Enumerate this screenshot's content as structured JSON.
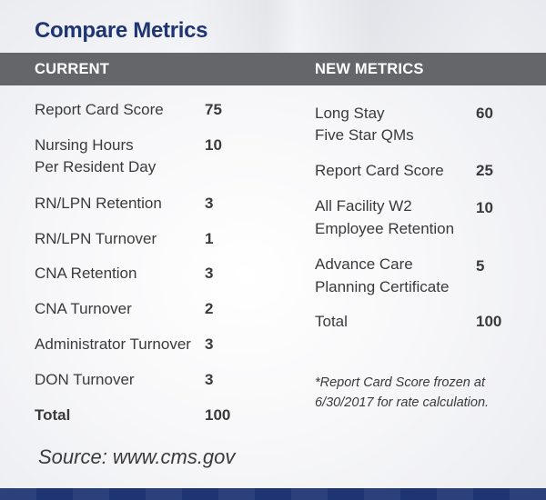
{
  "title": "Compare Metrics",
  "headers": {
    "current": "CURRENT",
    "new": "NEW METRICS"
  },
  "current": [
    {
      "label": [
        "Report Card Score"
      ],
      "value": "75"
    },
    {
      "label": [
        "Nursing Hours",
        "Per Resident Day"
      ],
      "value": "10"
    },
    {
      "label": [
        "RN/LPN Retention"
      ],
      "value": "3"
    },
    {
      "label": [
        "RN/LPN Turnover"
      ],
      "value": "1"
    },
    {
      "label": [
        "CNA Retention"
      ],
      "value": "3"
    },
    {
      "label": [
        "CNA Turnover"
      ],
      "value": "2"
    },
    {
      "label": [
        "Administrator Turnover"
      ],
      "value": "3"
    },
    {
      "label": [
        "DON Turnover"
      ],
      "value": "3"
    },
    {
      "label": [
        "Total"
      ],
      "value": "100"
    }
  ],
  "new_metrics": [
    {
      "label": [
        "Long Stay",
        "Five Star QMs"
      ],
      "value": "60"
    },
    {
      "label": [
        "Report Card Score"
      ],
      "value": "25"
    },
    {
      "label": [
        "All Facility W2",
        "Employee Retention"
      ],
      "value": "10"
    },
    {
      "label": [
        "Advance Care",
        "Planning Certificate"
      ],
      "value": "5"
    },
    {
      "label": [
        "Total"
      ],
      "value": "100"
    }
  ],
  "note": [
    "*Report Card Score frozen at",
    "6/30/2017 for rate calculation."
  ],
  "source": "Source:  www.cms.gov",
  "colors": {
    "title": "#1f3473",
    "header_bar": "#646669",
    "footer_bar": "#1f3473",
    "text": "#3a3a3a"
  }
}
